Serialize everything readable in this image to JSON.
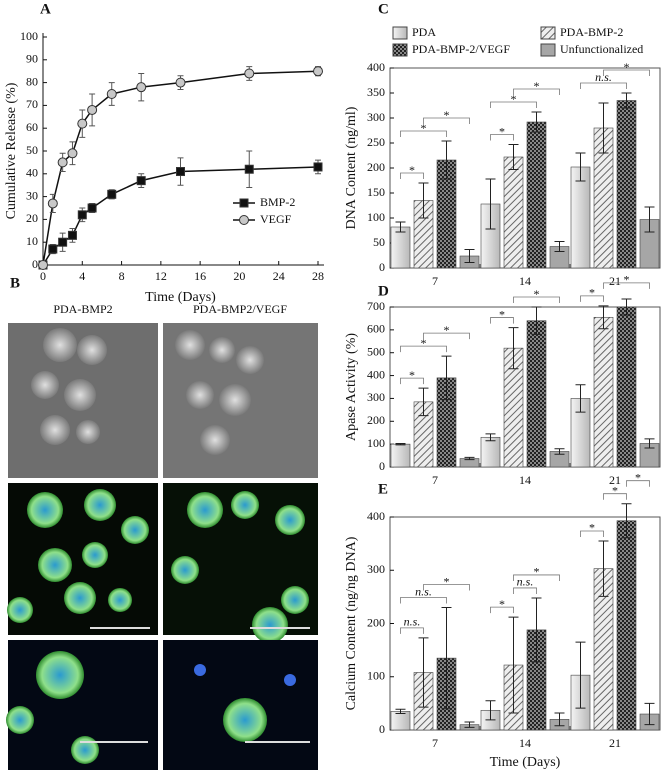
{
  "chart_data": [
    {
      "type": "line",
      "panel": "A",
      "xlabel": "Time (Days)",
      "ylabel": "Cumulative Release (%)",
      "x": [
        0,
        1,
        2,
        3,
        4,
        5,
        7,
        10,
        14,
        21,
        28
      ],
      "xlim": [
        0,
        28
      ],
      "xticks": [
        0,
        4,
        8,
        12,
        16,
        20,
        24,
        28
      ],
      "ylim": [
        0,
        100
      ],
      "yticks": [
        0,
        10,
        20,
        30,
        40,
        50,
        60,
        70,
        80,
        90,
        100
      ],
      "legend": "lower right",
      "series": [
        {
          "name": "BMP-2",
          "color": "#111111",
          "marker": "square",
          "values": [
            0,
            7,
            10,
            13,
            22,
            25,
            31,
            37,
            41,
            42,
            43
          ],
          "errors": [
            0,
            2,
            4,
            3,
            3,
            2,
            2,
            3,
            6,
            8,
            3
          ]
        },
        {
          "name": "VEGF",
          "color": "#c8c8c8",
          "marker": "circle",
          "values": [
            0,
            27,
            45,
            49,
            62,
            68,
            75,
            78,
            80,
            84,
            85
          ],
          "errors": [
            0,
            4,
            4,
            5,
            6,
            7,
            5,
            6,
            3,
            3,
            2
          ]
        }
      ]
    },
    {
      "type": "bar",
      "panel": "C",
      "ylabel": "DNA Content (ng/ml)",
      "categories": [
        "7",
        "14",
        "21"
      ],
      "ylim": [
        0,
        400
      ],
      "yticks": [
        0,
        50,
        100,
        150,
        200,
        250,
        300,
        350,
        400
      ],
      "legend": "top",
      "series": [
        {
          "name": "PDA",
          "color": "#dcdcdc",
          "pattern": "grad",
          "values": [
            82,
            128,
            202
          ],
          "errors": [
            10,
            50,
            28
          ]
        },
        {
          "name": "PDA-BMP-2",
          "color": "#bbbbbb",
          "pattern": "hatch",
          "values": [
            135,
            222,
            280
          ],
          "errors": [
            35,
            25,
            50
          ]
        },
        {
          "name": "PDA-BMP-2/VEGF",
          "color": "#333333",
          "pattern": "check",
          "values": [
            216,
            292,
            335
          ],
          "errors": [
            38,
            20,
            15
          ]
        },
        {
          "name": "Unfunctionalized",
          "color": "#a6a6a6",
          "values": [
            24,
            43,
            97
          ],
          "errors": [
            13,
            10,
            25
          ]
        }
      ],
      "significance": [
        {
          "category": 0,
          "pair": [
            0,
            1
          ],
          "label": "*"
        },
        {
          "category": 0,
          "pair": [
            0,
            2
          ],
          "label": "*"
        },
        {
          "category": 0,
          "pair": [
            1,
            3
          ],
          "label": "*"
        },
        {
          "category": 1,
          "pair": [
            0,
            1
          ],
          "label": "*"
        },
        {
          "category": 1,
          "pair": [
            0,
            2
          ],
          "label": "*"
        },
        {
          "category": 1,
          "pair": [
            1,
            3
          ],
          "label": "*"
        },
        {
          "category": 2,
          "pair": [
            0,
            2
          ],
          "label": "n.s."
        },
        {
          "category": 2,
          "pair": [
            1,
            3
          ],
          "label": "*"
        }
      ]
    },
    {
      "type": "bar",
      "panel": "D",
      "ylabel": "Apase Activity (%)",
      "categories": [
        "7",
        "14",
        "21"
      ],
      "ylim": [
        0,
        700
      ],
      "yticks": [
        0,
        100,
        200,
        300,
        400,
        500,
        600,
        700
      ],
      "series": [
        {
          "color": "#dcdcdc",
          "pattern": "grad",
          "values": [
            100,
            130,
            300
          ],
          "errors": [
            3,
            15,
            60
          ]
        },
        {
          "color": "#bbbbbb",
          "pattern": "hatch",
          "values": [
            285,
            520,
            655
          ],
          "errors": [
            60,
            90,
            50
          ]
        },
        {
          "color": "#333333",
          "pattern": "check",
          "values": [
            390,
            640,
            700
          ],
          "errors": [
            95,
            60,
            35
          ]
        },
        {
          "color": "#a6a6a6",
          "values": [
            37,
            68,
            103
          ],
          "errors": [
            5,
            12,
            20
          ]
        }
      ],
      "significance": [
        {
          "category": 0,
          "pair": [
            0,
            1
          ],
          "label": "*"
        },
        {
          "category": 0,
          "pair": [
            0,
            2
          ],
          "label": "*"
        },
        {
          "category": 0,
          "pair": [
            1,
            3
          ],
          "label": "*"
        },
        {
          "category": 1,
          "pair": [
            0,
            1
          ],
          "label": "*"
        },
        {
          "category": 1,
          "pair": [
            1,
            3
          ],
          "label": "*"
        },
        {
          "category": 2,
          "pair": [
            0,
            1
          ],
          "label": "*"
        },
        {
          "category": 2,
          "pair": [
            1,
            3
          ],
          "label": "*"
        }
      ]
    },
    {
      "type": "bar",
      "panel": "E",
      "xlabel": "Time (Days)",
      "ylabel": "Calcium Content (ng/ng DNA)",
      "categories": [
        "7",
        "14",
        "21"
      ],
      "ylim": [
        0,
        400
      ],
      "yticks": [
        0,
        100,
        200,
        300,
        400
      ],
      "series": [
        {
          "color": "#dcdcdc",
          "pattern": "grad",
          "values": [
            35,
            37,
            103
          ],
          "errors": [
            4,
            18,
            62
          ]
        },
        {
          "color": "#bbbbbb",
          "pattern": "hatch",
          "values": [
            108,
            122,
            303
          ],
          "errors": [
            65,
            90,
            52
          ]
        },
        {
          "color": "#333333",
          "pattern": "check",
          "values": [
            135,
            188,
            393
          ],
          "errors": [
            95,
            60,
            32
          ]
        },
        {
          "color": "#a6a6a6",
          "values": [
            10,
            20,
            30
          ],
          "errors": [
            5,
            12,
            20
          ]
        }
      ],
      "significance": [
        {
          "category": 0,
          "pair": [
            0,
            1
          ],
          "label": "n.s."
        },
        {
          "category": 0,
          "pair": [
            0,
            2
          ],
          "label": "n.s."
        },
        {
          "category": 0,
          "pair": [
            1,
            3
          ],
          "label": "*"
        },
        {
          "category": 1,
          "pair": [
            0,
            1
          ],
          "label": "*"
        },
        {
          "category": 1,
          "pair": [
            1,
            2
          ],
          "label": "n.s."
        },
        {
          "category": 1,
          "pair": [
            1,
            3
          ],
          "label": "*"
        },
        {
          "category": 2,
          "pair": [
            0,
            1
          ],
          "label": "*"
        },
        {
          "category": 2,
          "pair": [
            1,
            2
          ],
          "label": "*"
        },
        {
          "category": 2,
          "pair": [
            2,
            3
          ],
          "label": "*"
        }
      ]
    }
  ],
  "images": {
    "panel": "B",
    "columns": [
      "PDA-BMP2",
      "PDA-BMP2/VEGF"
    ]
  }
}
